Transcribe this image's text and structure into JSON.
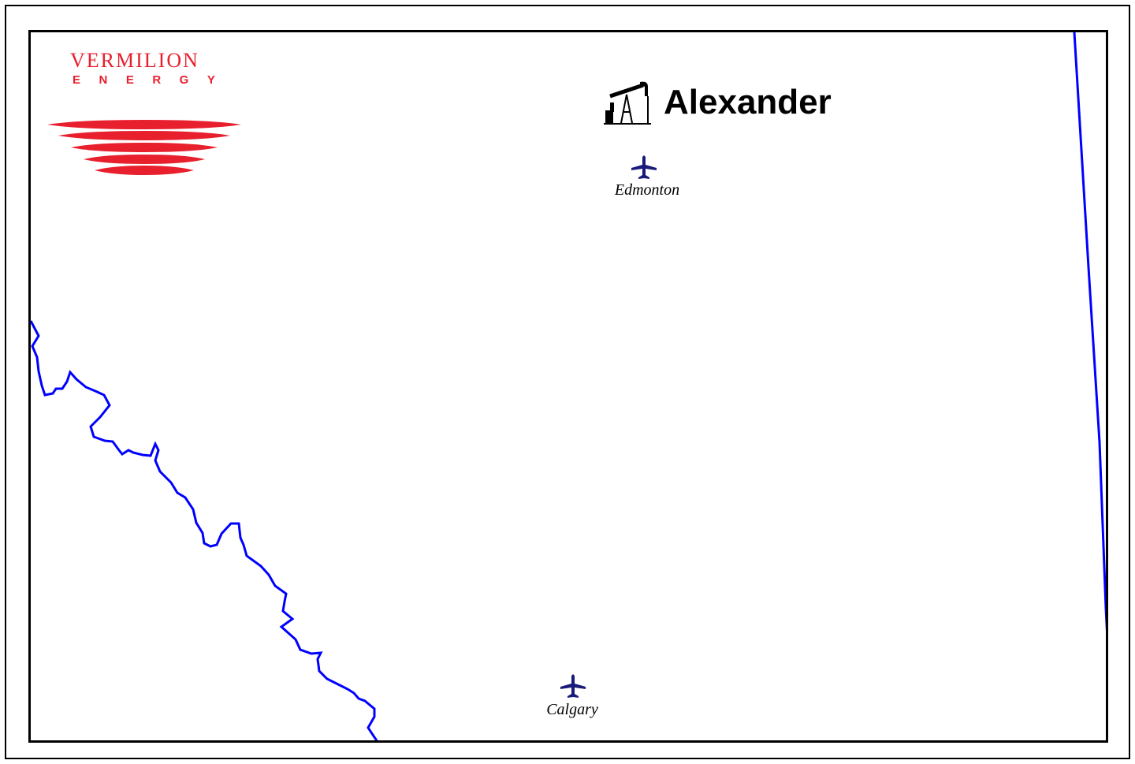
{
  "logo": {
    "wordmark": "VERMILION",
    "subline": "ENERGY",
    "color": "#e8202e"
  },
  "map": {
    "field_name": "Alexander",
    "field_icon": "pumpjack-icon",
    "boundary_color": "#0000ff",
    "airport_icon": "airplane-icon",
    "airport_color": "#1a1a7a",
    "cities": [
      {
        "name": "Edmonton"
      },
      {
        "name": "Calgary"
      }
    ]
  }
}
